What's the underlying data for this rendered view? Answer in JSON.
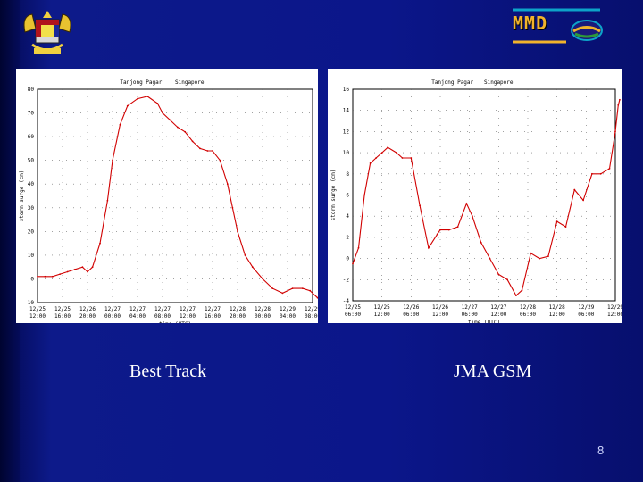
{
  "slide": {
    "logo_text": "MMD",
    "page_number": "8",
    "captions": [
      "Best Track",
      "JMA GSM"
    ]
  },
  "colors": {
    "background": "#0b168a",
    "series": "#d10000",
    "grid": "#6a6a6a"
  },
  "icons": {
    "left_logo": "malaysia-coat-of-arms-icon",
    "right_logo": "mmd-logo-icon"
  },
  "chart_data": [
    {
      "type": "line",
      "header_labels": [
        "Tanjong Pagar",
        "Singapore"
      ],
      "ylabel": "storm surge (cm)",
      "xlabel": "time (UTC)",
      "ylim": [
        -10,
        80
      ],
      "yticks": [
        "80",
        "70",
        "60",
        "50",
        "40",
        "30",
        "20",
        "10",
        "0",
        "-10"
      ],
      "xticks": [
        [
          "12/25",
          "12:00"
        ],
        [
          "12/25",
          "16:00"
        ],
        [
          "12/26",
          "20:00"
        ],
        [
          "12/27",
          "00:00"
        ],
        [
          "12/27",
          "04:00"
        ],
        [
          "12/27",
          "08:00"
        ],
        [
          "12/27",
          "12:00"
        ],
        [
          "12/27",
          "16:00"
        ],
        [
          "12/28",
          "20:00"
        ],
        [
          "12/28",
          "00:00"
        ],
        [
          "12/29",
          "04:00"
        ],
        [
          "12/29",
          "08:00"
        ]
      ],
      "series": [
        {
          "x": [
            0,
            0.3,
            0.6,
            0.9,
            1.2,
            1.5,
            1.8,
            2.0,
            2.2,
            2.5,
            2.8,
            3.0,
            3.3,
            3.6,
            4.0,
            4.4,
            4.8,
            5.0,
            5.3,
            5.6,
            5.9,
            6.2,
            6.5,
            6.8,
            7.0,
            7.3,
            7.6,
            7.8,
            8.0,
            8.3,
            8.6,
            9.0,
            9.4,
            9.8,
            10.2,
            10.6,
            10.9,
            11.2
          ],
          "y": [
            1,
            1,
            1,
            2,
            3,
            4,
            5,
            3,
            5,
            15,
            33,
            50,
            65,
            73,
            76,
            77,
            74,
            70,
            67,
            64,
            62,
            58,
            55,
            54,
            54,
            50,
            40,
            30,
            20,
            10,
            5,
            0,
            -4,
            -6,
            -4,
            -4,
            -5,
            -8
          ]
        }
      ]
    },
    {
      "type": "line",
      "header_labels": [
        "Tanjong Pagar",
        "Singapore"
      ],
      "ylabel": "storm surge (cm)",
      "xlabel": "time (UTC)",
      "ylim": [
        -4,
        16
      ],
      "yticks": [
        "16",
        "14",
        "12",
        "10",
        "8",
        "6",
        "4",
        "2",
        "0",
        "-2",
        "-4"
      ],
      "xticks": [
        [
          "12/25",
          "06:00"
        ],
        [
          "12/25",
          "12:00"
        ],
        [
          "12/26",
          "06:00"
        ],
        [
          "12/26",
          "12:00"
        ],
        [
          "12/27",
          "06:00"
        ],
        [
          "12/27",
          "12:00"
        ],
        [
          "12/28",
          "06:00"
        ],
        [
          "12/28",
          "12:00"
        ],
        [
          "12/29",
          "06:00"
        ],
        [
          "12/29",
          "12:00"
        ]
      ],
      "series": [
        {
          "x": [
            0,
            0.2,
            0.4,
            0.6,
            0.8,
            1.0,
            1.2,
            1.5,
            1.7,
            2.0,
            2.3,
            2.6,
            2.9,
            3.0,
            3.3,
            3.6,
            3.9,
            4.1,
            4.4,
            4.7,
            5.0,
            5.3,
            5.6,
            5.8,
            6.1,
            6.4,
            6.7,
            7.0,
            7.3,
            7.6,
            7.9,
            8.2,
            8.5,
            8.8,
            9.0,
            9.1,
            9.15
          ],
          "y": [
            -0.5,
            1,
            6,
            9,
            9.5,
            10,
            10.5,
            10,
            9.5,
            9.5,
            5,
            1,
            2.3,
            2.7,
            2.7,
            3,
            5.2,
            4,
            1.5,
            0,
            -1.5,
            -2,
            -3.5,
            -3,
            0.5,
            0,
            0.2,
            3.5,
            3,
            6.5,
            5.5,
            8,
            8,
            8.5,
            12,
            14.5,
            15
          ]
        }
      ]
    }
  ]
}
